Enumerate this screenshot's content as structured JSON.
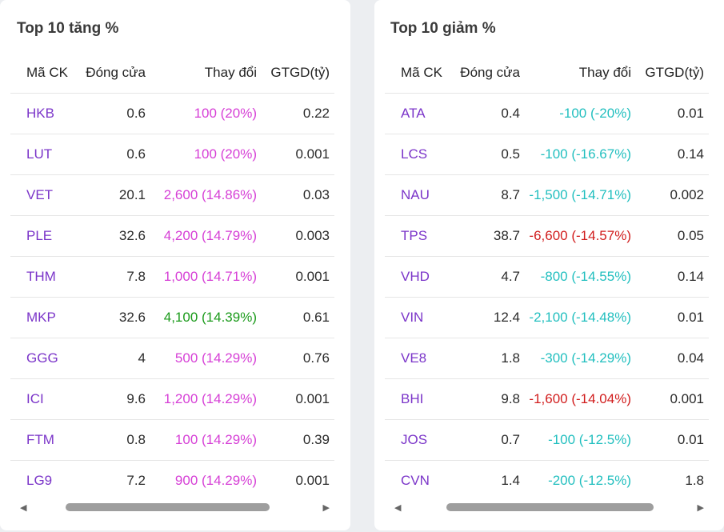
{
  "colors": {
    "symbol": "#7b35c9",
    "ceiling": "#d63fd6",
    "increase": "#1a9a1a",
    "decrease": "#d11d1d",
    "floor": "#22bfbf"
  },
  "gainers": {
    "title": "Top 10 tăng %",
    "headers": {
      "symbol": "Mã CK",
      "close": "Đóng cửa",
      "change": "Thay đổi",
      "value": "GTGD(tỷ)"
    },
    "rows": [
      {
        "symbol": "HKB",
        "close": "0.6",
        "change": "100 (20%)",
        "value": "0.22",
        "color": "#d63fd6"
      },
      {
        "symbol": "LUT",
        "close": "0.6",
        "change": "100 (20%)",
        "value": "0.001",
        "color": "#d63fd6"
      },
      {
        "symbol": "VET",
        "close": "20.1",
        "change": "2,600 (14.86%)",
        "value": "0.03",
        "color": "#d63fd6"
      },
      {
        "symbol": "PLE",
        "close": "32.6",
        "change": "4,200 (14.79%)",
        "value": "0.003",
        "color": "#d63fd6"
      },
      {
        "symbol": "THM",
        "close": "7.8",
        "change": "1,000 (14.71%)",
        "value": "0.001",
        "color": "#d63fd6"
      },
      {
        "symbol": "MKP",
        "close": "32.6",
        "change": "4,100 (14.39%)",
        "value": "0.61",
        "color": "#1a9a1a"
      },
      {
        "symbol": "GGG",
        "close": "4",
        "change": "500 (14.29%)",
        "value": "0.76",
        "color": "#d63fd6"
      },
      {
        "symbol": "ICI",
        "close": "9.6",
        "change": "1,200 (14.29%)",
        "value": "0.001",
        "color": "#d63fd6"
      },
      {
        "symbol": "FTM",
        "close": "0.8",
        "change": "100 (14.29%)",
        "value": "0.39",
        "color": "#d63fd6"
      },
      {
        "symbol": "LG9",
        "close": "7.2",
        "change": "900 (14.29%)",
        "value": "0.001",
        "color": "#d63fd6"
      }
    ],
    "scroll": {
      "thumb_start": 0.17,
      "thumb_fraction": 0.63
    }
  },
  "losers": {
    "title": "Top 10 giảm %",
    "headers": {
      "symbol": "Mã CK",
      "close": "Đóng cửa",
      "change": "Thay đổi",
      "value": "GTGD(tỷ)"
    },
    "rows": [
      {
        "symbol": "ATA",
        "close": "0.4",
        "change": "-100 (-20%)",
        "value": "0.01",
        "color": "#22bfbf"
      },
      {
        "symbol": "LCS",
        "close": "0.5",
        "change": "-100 (-16.67%)",
        "value": "0.14",
        "color": "#22bfbf"
      },
      {
        "symbol": "NAU",
        "close": "8.7",
        "change": "-1,500 (-14.71%)",
        "value": "0.002",
        "color": "#22bfbf"
      },
      {
        "symbol": "TPS",
        "close": "38.7",
        "change": "-6,600 (-14.57%)",
        "value": "0.05",
        "color": "#d11d1d"
      },
      {
        "symbol": "VHD",
        "close": "4.7",
        "change": "-800 (-14.55%)",
        "value": "0.14",
        "color": "#22bfbf"
      },
      {
        "symbol": "VIN",
        "close": "12.4",
        "change": "-2,100 (-14.48%)",
        "value": "0.01",
        "color": "#22bfbf"
      },
      {
        "symbol": "VE8",
        "close": "1.8",
        "change": "-300 (-14.29%)",
        "value": "0.04",
        "color": "#22bfbf"
      },
      {
        "symbol": "BHI",
        "close": "9.8",
        "change": "-1,600 (-14.04%)",
        "value": "0.001",
        "color": "#d11d1d"
      },
      {
        "symbol": "JOS",
        "close": "0.7",
        "change": "-100 (-12.5%)",
        "value": "0.01",
        "color": "#22bfbf"
      },
      {
        "symbol": "CVN",
        "close": "1.4",
        "change": "-200 (-12.5%)",
        "value": "1.8",
        "color": "#22bfbf"
      }
    ],
    "scroll": {
      "thumb_start": 0.19,
      "thumb_fraction": 0.64
    }
  }
}
